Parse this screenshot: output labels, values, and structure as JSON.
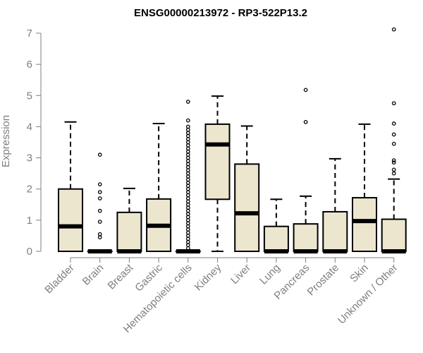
{
  "chart_data": {
    "type": "boxplot",
    "title": "ENSG00000213972 - RP3-522P13.2",
    "xlabel": "",
    "ylabel": "Expression",
    "ylim": [
      0,
      7
    ],
    "yticks": [
      0,
      1,
      2,
      3,
      4,
      5,
      6,
      7
    ],
    "box_color": "#ede6cf",
    "categories": [
      "Bladder",
      "Brain",
      "Breast",
      "Gastric",
      "Hematopoietic cells",
      "Kidney",
      "Liver",
      "Lung",
      "Pancreas",
      "Prostate",
      "Skin",
      "Unknown / Other"
    ],
    "series": [
      {
        "category": "Bladder",
        "min": 0,
        "q1": 0,
        "median": 0.8,
        "q3": 2.0,
        "max": 4.15,
        "outliers": []
      },
      {
        "category": "Brain",
        "min": 0,
        "q1": 0,
        "median": 0,
        "q3": 0,
        "max": 0,
        "outliers": [
          0.45,
          0.55,
          0.95,
          1.3,
          1.7,
          1.9,
          2.15,
          3.1
        ]
      },
      {
        "category": "Breast",
        "min": 0,
        "q1": 0,
        "median": 0,
        "q3": 1.25,
        "max": 2.02,
        "outliers": []
      },
      {
        "category": "Gastric",
        "min": 0,
        "q1": 0,
        "median": 0.82,
        "q3": 1.68,
        "max": 4.1,
        "outliers": []
      },
      {
        "category": "Hematopoietic cells",
        "min": 0,
        "q1": 0,
        "median": 0,
        "q3": 0,
        "max": 0,
        "outliers": [
          0.1,
          0.2,
          0.3,
          0.4,
          0.5,
          0.6,
          0.7,
          0.8,
          0.9,
          1.0,
          1.1,
          1.2,
          1.3,
          1.4,
          1.5,
          1.6,
          1.7,
          1.8,
          1.9,
          2.0,
          2.1,
          2.2,
          2.3,
          2.4,
          2.5,
          2.6,
          2.7,
          2.8,
          2.9,
          3.0,
          3.1,
          3.2,
          3.3,
          3.4,
          3.5,
          3.6,
          3.7,
          3.8,
          3.9,
          4.0,
          4.2,
          4.8
        ]
      },
      {
        "category": "Kidney",
        "min": 0,
        "q1": 1.67,
        "median": 3.43,
        "q3": 4.08,
        "max": 4.98,
        "outliers": []
      },
      {
        "category": "Liver",
        "min": 0,
        "q1": 0,
        "median": 1.22,
        "q3": 2.8,
        "max": 4.02,
        "outliers": []
      },
      {
        "category": "Lung",
        "min": 0,
        "q1": 0,
        "median": 0,
        "q3": 0.8,
        "max": 1.67,
        "outliers": []
      },
      {
        "category": "Pancreas",
        "min": 0,
        "q1": 0,
        "median": 0,
        "q3": 0.88,
        "max": 1.77,
        "outliers": [
          4.15,
          5.18
        ]
      },
      {
        "category": "Prostate",
        "min": 0,
        "q1": 0,
        "median": 0,
        "q3": 1.27,
        "max": 2.97,
        "outliers": []
      },
      {
        "category": "Skin",
        "min": 0,
        "q1": 0,
        "median": 0.97,
        "q3": 1.72,
        "max": 4.08,
        "outliers": []
      },
      {
        "category": "Unknown / Other",
        "min": 0,
        "q1": 0,
        "median": 0,
        "q3": 1.03,
        "max": 2.32,
        "outliers": [
          2.5,
          2.62,
          2.85,
          2.92,
          3.45,
          3.75,
          4.1,
          4.75,
          7.12
        ]
      }
    ]
  }
}
